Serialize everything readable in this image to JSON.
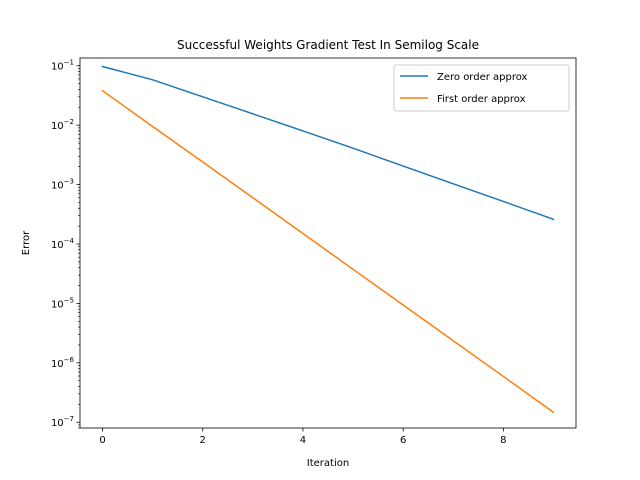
{
  "chart_data": {
    "type": "line",
    "title": "Successful Weights Gradient Test In Semilog Scale",
    "xlabel": "Iteration",
    "ylabel": "Error",
    "yscale": "log",
    "xlim": [
      -0.45,
      9.45
    ],
    "ylim": [
      8e-08,
      0.135
    ],
    "x_ticks": [
      0,
      2,
      4,
      6,
      8
    ],
    "y_ticks": [
      {
        "value": 1e-07,
        "base": "10",
        "exp": "−7"
      },
      {
        "value": 1e-06,
        "base": "10",
        "exp": "−6"
      },
      {
        "value": 1e-05,
        "base": "10",
        "exp": "−5"
      },
      {
        "value": 0.0001,
        "base": "10",
        "exp": "−4"
      },
      {
        "value": 0.001,
        "base": "10",
        "exp": "−3"
      },
      {
        "value": 0.01,
        "base": "10",
        "exp": "−2"
      },
      {
        "value": 0.1,
        "base": "10",
        "exp": "−1"
      }
    ],
    "x": [
      0,
      1,
      2,
      3,
      4,
      5,
      6,
      7,
      8,
      9
    ],
    "series": [
      {
        "name": "Zero order approx",
        "color": "#1f77b4",
        "values": [
          0.097,
          0.058,
          0.03,
          0.0155,
          0.008,
          0.0041,
          0.00205,
          0.00103,
          0.00052,
          0.00026
        ]
      },
      {
        "name": "First order approx",
        "color": "#ff7f0e",
        "values": [
          0.038,
          0.0095,
          0.0024,
          0.0006,
          0.00015,
          3.75e-05,
          9.4e-06,
          2.35e-06,
          5.9e-07,
          1.47e-07
        ]
      }
    ],
    "legend_position": "top-right",
    "grid": false
  }
}
